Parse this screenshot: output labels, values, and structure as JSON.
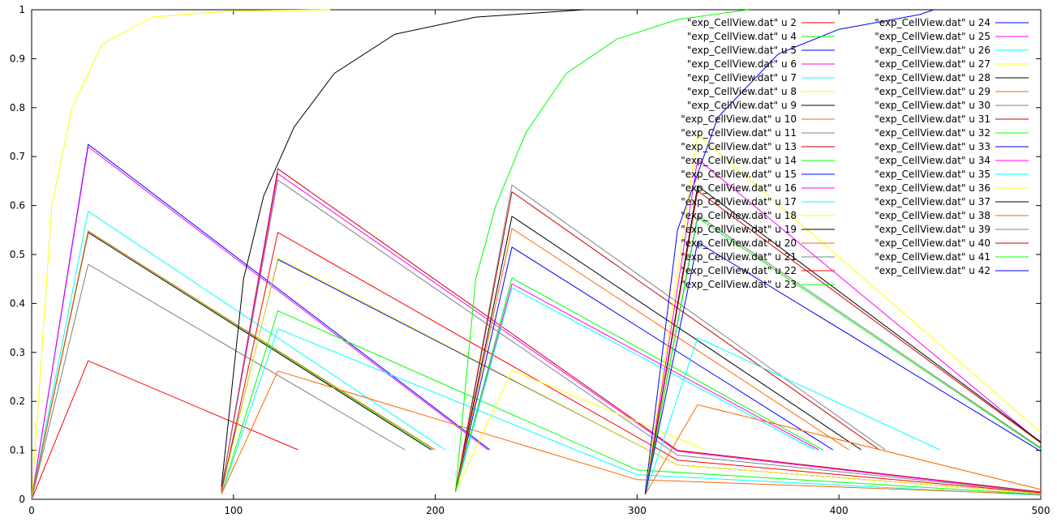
{
  "chart_data": {
    "type": "line",
    "title": "",
    "xlabel": "",
    "ylabel": "",
    "xlim": [
      0,
      500
    ],
    "ylim": [
      0,
      1
    ],
    "x_ticks": [
      "0",
      "100",
      "200",
      "300",
      "400",
      "500"
    ],
    "y_ticks": [
      "0",
      "0.1",
      "0.2",
      "0.3",
      "0.4",
      "0.5",
      "0.6",
      "0.7",
      "0.8",
      "0.9",
      "1"
    ],
    "grid": false,
    "legend_position": "top-right",
    "series": [
      {
        "name": "\"exp_CellView.dat\" u 2",
        "color": "#ff0000",
        "points": [
          [
            0,
            0
          ],
          [
            28,
            0.283
          ],
          [
            132,
            0.101
          ]
        ]
      },
      {
        "name": "\"exp_CellView.dat\" u 4",
        "color": "#00ff00",
        "points": [
          [
            0,
            0
          ],
          [
            28,
            0.548
          ],
          [
            199,
            0.101
          ]
        ]
      },
      {
        "name": "\"exp_CellView.dat\" u 5",
        "color": "#0000ff",
        "points": [
          [
            0,
            0
          ],
          [
            28,
            0.725
          ],
          [
            227,
            0.101
          ]
        ]
      },
      {
        "name": "\"exp_CellView.dat\" u 6",
        "color": "#ff00ff",
        "points": [
          [
            0,
            0
          ],
          [
            28,
            0.72
          ],
          [
            226,
            0.101
          ]
        ]
      },
      {
        "name": "\"exp_CellView.dat\" u 7",
        "color": "#00ffff",
        "points": [
          [
            0,
            0
          ],
          [
            28,
            0.588
          ],
          [
            205,
            0.101
          ]
        ]
      },
      {
        "name": "\"exp_CellView.dat\" u 8",
        "color": "#ffff00",
        "points": [
          [
            0,
            0
          ],
          [
            10,
            0.6
          ],
          [
            20,
            0.8
          ],
          [
            35,
            0.93
          ],
          [
            60,
            0.985
          ],
          [
            100,
            0.998
          ],
          [
            148,
            1
          ]
        ]
      },
      {
        "name": "\"exp_CellView.dat\" u 9",
        "color": "#000000",
        "points": [
          [
            0,
            0
          ],
          [
            28,
            0.545
          ],
          [
            198,
            0.101
          ]
        ]
      },
      {
        "name": "\"exp_CellView.dat\" u 10",
        "color": "#ff6600",
        "points": [
          [
            0,
            0
          ],
          [
            28,
            0.548
          ],
          [
            200,
            0.101
          ]
        ]
      },
      {
        "name": "\"exp_CellView.dat\" u 11",
        "color": "#808080",
        "points": [
          [
            0,
            0
          ],
          [
            28,
            0.48
          ],
          [
            185,
            0.101
          ]
        ]
      },
      {
        "name": "\"exp_CellView.dat\" u 13",
        "color": "#cc0000",
        "points": [
          [
            94,
            0.02
          ],
          [
            122,
            0.675
          ],
          [
            320,
            0.1
          ],
          [
            500,
            0.015
          ]
        ]
      },
      {
        "name": "\"exp_CellView.dat\" u 14",
        "color": "#00ff00",
        "points": [
          [
            94,
            0.01
          ],
          [
            122,
            0.385
          ],
          [
            300,
            0.06
          ],
          [
            500,
            0.01
          ]
        ]
      },
      {
        "name": "\"exp_CellView.dat\" u 15",
        "color": "#0000ff",
        "points": [
          [
            94,
            0.02
          ],
          [
            122,
            0.49
          ],
          [
            320,
            0.07
          ],
          [
            500,
            0.012
          ]
        ]
      },
      {
        "name": "\"exp_CellView.dat\" u 16",
        "color": "#ff00ff",
        "points": [
          [
            94,
            0.02
          ],
          [
            122,
            0.665
          ],
          [
            320,
            0.098
          ],
          [
            500,
            0.014
          ]
        ]
      },
      {
        "name": "\"exp_CellView.dat\" u 17",
        "color": "#00ffff",
        "points": [
          [
            94,
            0.01
          ],
          [
            122,
            0.348
          ],
          [
            300,
            0.05
          ],
          [
            500,
            0.008
          ]
        ]
      },
      {
        "name": "\"exp_CellView.dat\" u 18",
        "color": "#ffff00",
        "points": [
          [
            94,
            0.015
          ],
          [
            122,
            0.493
          ],
          [
            320,
            0.07
          ],
          [
            500,
            0.012
          ]
        ]
      },
      {
        "name": "\"exp_CellView.dat\" u 19",
        "color": "#000000",
        "points": [
          [
            94,
            0.025
          ],
          [
            105,
            0.45
          ],
          [
            115,
            0.62
          ],
          [
            130,
            0.76
          ],
          [
            150,
            0.87
          ],
          [
            180,
            0.95
          ],
          [
            220,
            0.985
          ],
          [
            274,
            1
          ]
        ]
      },
      {
        "name": "\"exp_CellView.dat\" u 20",
        "color": "#ff6600",
        "points": [
          [
            94,
            0.01
          ],
          [
            122,
            0.262
          ],
          [
            300,
            0.04
          ],
          [
            500,
            0.01
          ]
        ]
      },
      {
        "name": "\"exp_CellView.dat\" u 21",
        "color": "#808080",
        "points": [
          [
            94,
            0.02
          ],
          [
            122,
            0.652
          ],
          [
            320,
            0.09
          ],
          [
            500,
            0.014
          ]
        ]
      },
      {
        "name": "\"exp_CellView.dat\" u 22",
        "color": "#ff0000",
        "points": [
          [
            94,
            0.015
          ],
          [
            122,
            0.545
          ],
          [
            320,
            0.08
          ],
          [
            500,
            0.013
          ]
        ]
      },
      {
        "name": "\"exp_CellView.dat\" u 23",
        "color": "#00ff00",
        "points": [
          [
            210,
            0.015
          ],
          [
            220,
            0.45
          ],
          [
            230,
            0.6
          ],
          [
            245,
            0.75
          ],
          [
            265,
            0.87
          ],
          [
            290,
            0.94
          ],
          [
            320,
            0.98
          ],
          [
            355,
            1
          ]
        ]
      },
      {
        "name": "\"exp_CellView.dat\" u 24",
        "color": "#0000ff",
        "points": [
          [
            210,
            0.015
          ],
          [
            238,
            0.515
          ],
          [
            397,
            0.101
          ]
        ]
      },
      {
        "name": "\"exp_CellView.dat\" u 25",
        "color": "#ff00ff",
        "points": [
          [
            210,
            0.015
          ],
          [
            238,
            0.44
          ],
          [
            390,
            0.101
          ]
        ]
      },
      {
        "name": "\"exp_CellView.dat\" u 26",
        "color": "#00ffff",
        "points": [
          [
            210,
            0.015
          ],
          [
            238,
            0.432
          ],
          [
            388,
            0.101
          ]
        ]
      },
      {
        "name": "\"exp_CellView.dat\" u 27",
        "color": "#ffff00",
        "points": [
          [
            210,
            0.015
          ],
          [
            238,
            0.263
          ],
          [
            334,
            0.101
          ]
        ]
      },
      {
        "name": "\"exp_CellView.dat\" u 28",
        "color": "#000000",
        "points": [
          [
            210,
            0.015
          ],
          [
            238,
            0.578
          ],
          [
            411,
            0.101
          ]
        ]
      },
      {
        "name": "\"exp_CellView.dat\" u 29",
        "color": "#ff6600",
        "points": [
          [
            210,
            0.015
          ],
          [
            238,
            0.553
          ],
          [
            405,
            0.101
          ]
        ]
      },
      {
        "name": "\"exp_CellView.dat\" u 30",
        "color": "#808080",
        "points": [
          [
            210,
            0.015
          ],
          [
            238,
            0.642
          ],
          [
            423,
            0.101
          ]
        ]
      },
      {
        "name": "\"exp_CellView.dat\" u 31",
        "color": "#cc0000",
        "points": [
          [
            210,
            0.015
          ],
          [
            238,
            0.628
          ],
          [
            420,
            0.101
          ]
        ]
      },
      {
        "name": "\"exp_CellView.dat\" u 32",
        "color": "#00ff00",
        "points": [
          [
            210,
            0.015
          ],
          [
            238,
            0.452
          ],
          [
            392,
            0.101
          ]
        ]
      },
      {
        "name": "\"exp_CellView.dat\" u 33",
        "color": "#0000ff",
        "points": [
          [
            304,
            0.015
          ],
          [
            320,
            0.55
          ],
          [
            340,
            0.78
          ],
          [
            370,
            0.91
          ],
          [
            400,
            0.96
          ],
          [
            440,
            0.99
          ],
          [
            447,
            1
          ]
        ]
      },
      {
        "name": "\"exp_CellView.dat\" u 34",
        "color": "#ff00ff",
        "points": [
          [
            304,
            0.01
          ],
          [
            330,
            0.695
          ],
          [
            500,
            0.115
          ]
        ]
      },
      {
        "name": "\"exp_CellView.dat\" u 35",
        "color": "#00ffff",
        "points": [
          [
            304,
            0.01
          ],
          [
            330,
            0.33
          ],
          [
            450,
            0.101
          ]
        ]
      },
      {
        "name": "\"exp_CellView.dat\" u 36",
        "color": "#ffff00",
        "points": [
          [
            304,
            0.01
          ],
          [
            330,
            0.745
          ],
          [
            500,
            0.137
          ]
        ]
      },
      {
        "name": "\"exp_CellView.dat\" u 37",
        "color": "#000000",
        "points": [
          [
            304,
            0.01
          ],
          [
            330,
            0.64
          ],
          [
            500,
            0.117
          ]
        ]
      },
      {
        "name": "\"exp_CellView.dat\" u 38",
        "color": "#ff6600",
        "points": [
          [
            304,
            0.01
          ],
          [
            330,
            0.193
          ],
          [
            500,
            0.02
          ]
        ]
      },
      {
        "name": "\"exp_CellView.dat\" u 39",
        "color": "#808080",
        "points": [
          [
            304,
            0.01
          ],
          [
            330,
            0.58
          ],
          [
            500,
            0.105
          ]
        ]
      },
      {
        "name": "\"exp_CellView.dat\" u 40",
        "color": "#cc0000",
        "points": [
          [
            304,
            0.01
          ],
          [
            330,
            0.63
          ],
          [
            500,
            0.115
          ]
        ]
      },
      {
        "name": "\"exp_CellView.dat\" u 41",
        "color": "#00ff00",
        "points": [
          [
            304,
            0.01
          ],
          [
            330,
            0.575
          ],
          [
            500,
            0.103
          ]
        ]
      },
      {
        "name": "\"exp_CellView.dat\" u 42",
        "color": "#0000ff",
        "points": [
          [
            304,
            0.01
          ],
          [
            330,
            0.525
          ],
          [
            500,
            0.098
          ]
        ]
      }
    ]
  }
}
